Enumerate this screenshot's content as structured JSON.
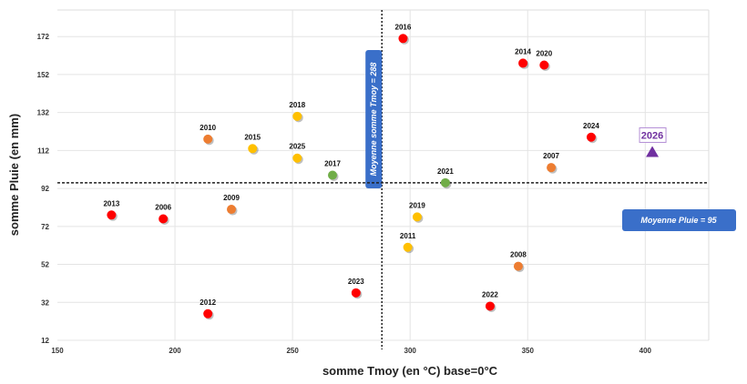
{
  "chart_data": {
    "type": "scatter",
    "xlabel": "somme Tmoy (en °C) base=0°C",
    "ylabel": "somme Pluie (en mm)",
    "xlim": [
      150,
      427
    ],
    "ylim": [
      12,
      186
    ],
    "xticks": [
      150,
      200,
      250,
      300,
      350,
      400
    ],
    "yticks": [
      12,
      32,
      52,
      72,
      92,
      112,
      132,
      152,
      172
    ],
    "grid": true,
    "colors": {
      "red": "#ff0000",
      "orange": "#ed7d31",
      "yellow": "#ffc000",
      "green": "#70ad47",
      "purple": "#7030a0",
      "annotation": "#3a6fc9"
    },
    "points": [
      {
        "label": "2016",
        "x": 297,
        "y": 171,
        "color": "red"
      },
      {
        "label": "2014",
        "x": 348,
        "y": 158,
        "color": "red"
      },
      {
        "label": "2020",
        "x": 357,
        "y": 157,
        "color": "red"
      },
      {
        "label": "2024",
        "x": 377,
        "y": 119,
        "color": "red"
      },
      {
        "label": "2007",
        "x": 360,
        "y": 103,
        "color": "orange"
      },
      {
        "label": "2021",
        "x": 315,
        "y": 95,
        "color": "green"
      },
      {
        "label": "2019",
        "x": 303,
        "y": 77,
        "color": "yellow"
      },
      {
        "label": "2011",
        "x": 299,
        "y": 61,
        "color": "yellow"
      },
      {
        "label": "2008",
        "x": 346,
        "y": 51,
        "color": "orange"
      },
      {
        "label": "2022",
        "x": 334,
        "y": 30,
        "color": "red"
      },
      {
        "label": "2023",
        "x": 277,
        "y": 37,
        "color": "red"
      },
      {
        "label": "2012",
        "x": 214,
        "y": 26,
        "color": "red"
      },
      {
        "label": "2013",
        "x": 173,
        "y": 78,
        "color": "red"
      },
      {
        "label": "2006",
        "x": 195,
        "y": 76,
        "color": "red"
      },
      {
        "label": "2009",
        "x": 224,
        "y": 81,
        "color": "orange"
      },
      {
        "label": "2010",
        "x": 214,
        "y": 118,
        "color": "orange"
      },
      {
        "label": "2015",
        "x": 233,
        "y": 113,
        "color": "yellow"
      },
      {
        "label": "2018",
        "x": 252,
        "y": 130,
        "color": "yellow"
      },
      {
        "label": "2025",
        "x": 252,
        "y": 108,
        "color": "yellow"
      },
      {
        "label": "2017",
        "x": 267,
        "y": 99,
        "color": "green"
      }
    ],
    "highlight": {
      "label": "2026",
      "x": 403,
      "y": 111,
      "color": "purple",
      "marker": "triangle"
    },
    "reference_lines": [
      {
        "axis": "x",
        "value": 288,
        "label": "Moyenne somme Tmoy = 288"
      },
      {
        "axis": "y",
        "value": 95,
        "label": "Moyenne Pluie = 95"
      }
    ]
  }
}
